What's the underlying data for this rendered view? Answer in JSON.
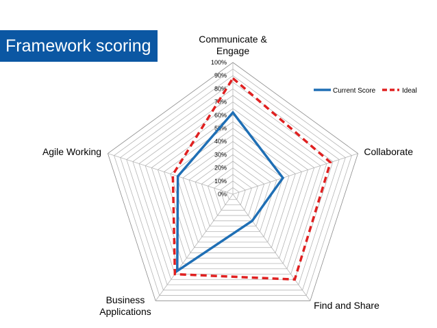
{
  "slide": {
    "title": "Framework scoring"
  },
  "chart_data": {
    "type": "radar",
    "categories": [
      "Communicate & Engage",
      "Collaborate",
      "Find and Share",
      "Business Applications",
      "Agile Working"
    ],
    "category_lines": [
      [
        "Communicate &",
        "Engage"
      ],
      [
        "Collaborate"
      ],
      [
        "Find and Share"
      ],
      [
        "Business",
        "Applications"
      ],
      [
        "Agile Working"
      ]
    ],
    "series": [
      {
        "name": "Current Score",
        "values": [
          0.62,
          0.4,
          0.25,
          0.72,
          0.44
        ],
        "color": "#1f6fb5",
        "style": "solid"
      },
      {
        "name": "Ideal",
        "values": [
          0.88,
          0.78,
          0.8,
          0.75,
          0.48
        ],
        "color": "#e02020",
        "style": "dashed"
      }
    ],
    "ticks": [
      "0%",
      "10%",
      "20%",
      "30%",
      "40%",
      "50%",
      "60%",
      "70%",
      "80%",
      "90%",
      "100%"
    ],
    "range": [
      0,
      1
    ],
    "grid": true,
    "legend_position": "top-right"
  }
}
